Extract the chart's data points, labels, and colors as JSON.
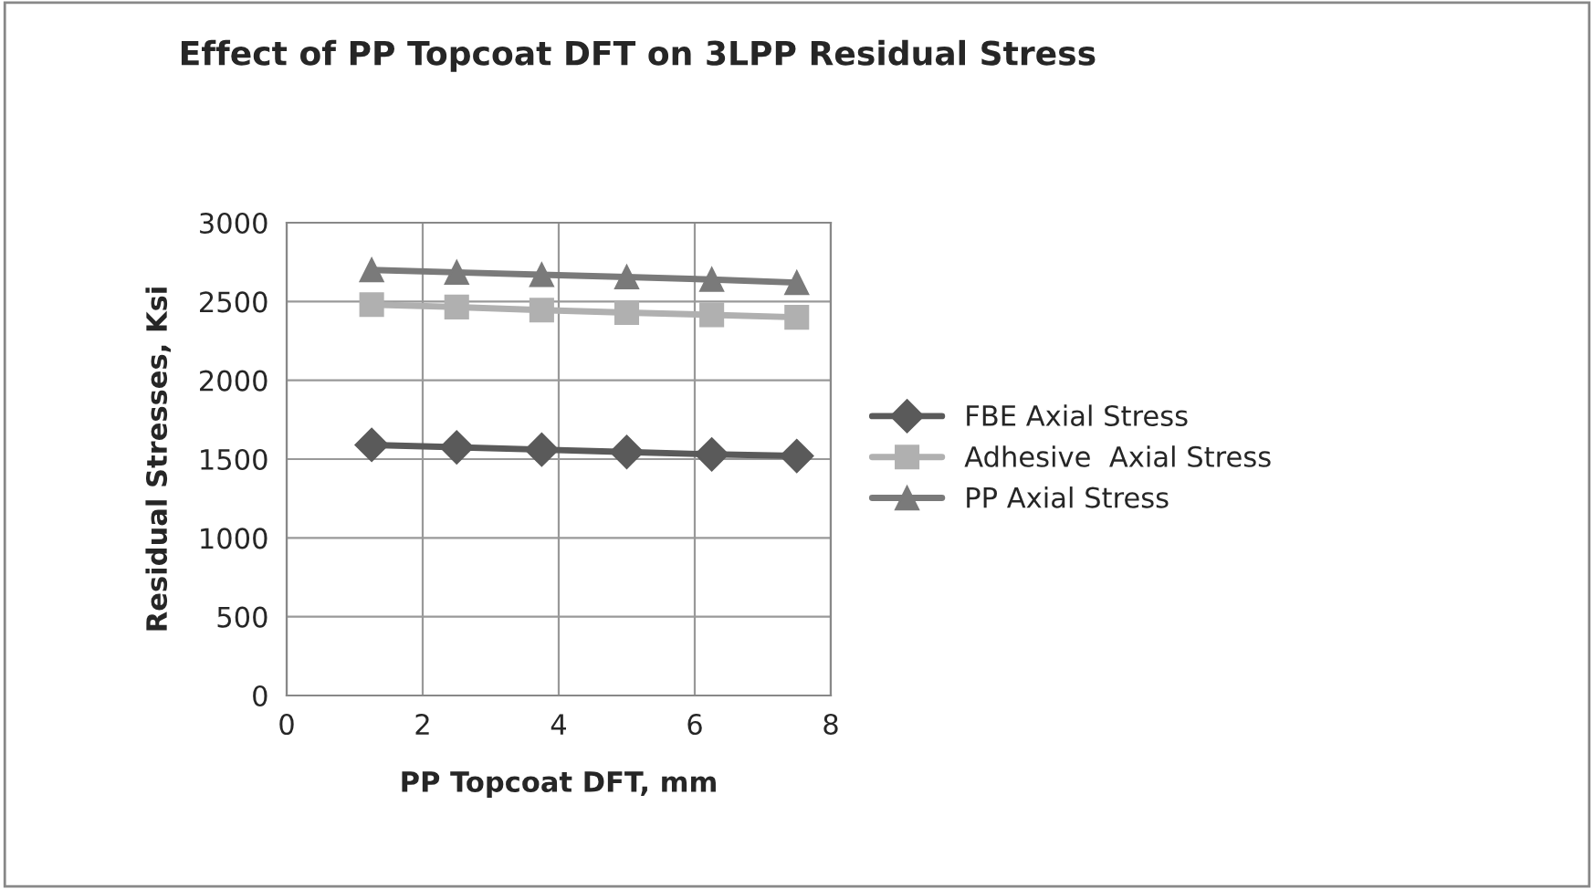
{
  "chart_data": {
    "type": "line",
    "title": "Effect of PP Topcoat DFT on 3LPP Residual Stress",
    "xlabel": "PP Topcoat DFT, mm",
    "ylabel": "Residual Stresses, Ksi",
    "x": [
      1.25,
      2.5,
      3.75,
      5,
      6.25,
      7.5
    ],
    "series": [
      {
        "name": "FBE Axial Stress",
        "color": "#5a5a5a",
        "marker": "diamond",
        "values": [
          1590,
          1575,
          1560,
          1545,
          1530,
          1520
        ]
      },
      {
        "name": "Adhesive  Axial Stress",
        "color": "#b0b0b0",
        "marker": "square",
        "values": [
          2480,
          2465,
          2445,
          2430,
          2415,
          2400
        ]
      },
      {
        "name": "PP Axial Stress",
        "color": "#7a7a7a",
        "marker": "triangle",
        "values": [
          2700,
          2685,
          2670,
          2655,
          2640,
          2620
        ]
      }
    ],
    "xlim": [
      0,
      8
    ],
    "xticks": [
      0,
      2,
      4,
      6,
      8
    ],
    "ylim": [
      0,
      3000
    ],
    "yticks": [
      0,
      500,
      1000,
      1500,
      2000,
      2500,
      3000
    ],
    "grid": true,
    "legend": "right",
    "line_style": "solid"
  }
}
